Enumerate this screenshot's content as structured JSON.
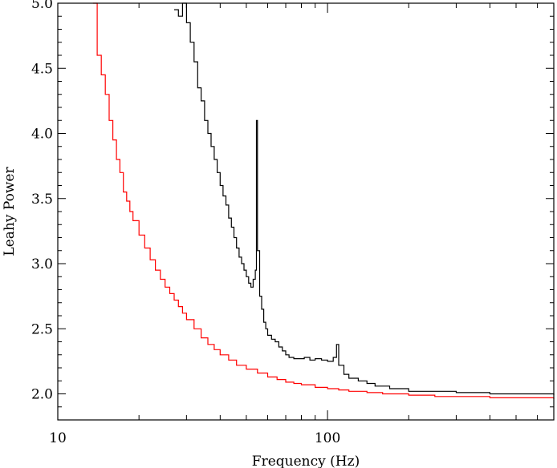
{
  "chart_data": {
    "type": "line",
    "xlabel": "Frequency (Hz)",
    "ylabel": "Leahy Power",
    "x_scale": "log",
    "xlim": [
      10,
      690
    ],
    "ylim": [
      1.8,
      5.0
    ],
    "x_ticks": [
      10,
      100
    ],
    "x_tick_labels": [
      "10",
      "100"
    ],
    "y_ticks": [
      2.0,
      2.5,
      3.0,
      3.5,
      4.0,
      4.5,
      5.0
    ],
    "y_tick_labels": [
      "2.0",
      "2.5",
      "3.0",
      "3.5",
      "4.0",
      "4.5",
      "5.0"
    ],
    "grid": false,
    "series": [
      {
        "color": "#000000",
        "x": [
          27,
          28,
          29,
          30,
          31,
          32,
          33,
          34,
          35,
          36,
          37,
          38,
          39,
          40,
          41,
          42,
          43,
          44,
          45,
          46,
          47,
          48,
          49,
          50,
          51,
          52,
          53,
          54,
          54.5,
          55,
          56,
          57,
          58,
          59,
          60,
          62,
          64,
          66,
          68,
          70,
          72,
          75,
          78,
          82,
          86,
          90,
          95,
          100,
          105,
          108,
          110,
          115,
          120,
          130,
          140,
          150,
          170,
          200,
          250,
          300,
          400,
          500,
          690
        ],
        "y": [
          4.95,
          4.9,
          5.0,
          4.85,
          4.7,
          4.55,
          4.35,
          4.25,
          4.1,
          4.0,
          3.9,
          3.8,
          3.7,
          3.6,
          3.52,
          3.45,
          3.35,
          3.28,
          3.2,
          3.12,
          3.05,
          3.0,
          2.95,
          2.9,
          2.85,
          2.82,
          2.88,
          2.95,
          4.1,
          3.1,
          2.75,
          2.65,
          2.55,
          2.5,
          2.45,
          2.42,
          2.4,
          2.36,
          2.33,
          2.3,
          2.28,
          2.27,
          2.27,
          2.28,
          2.26,
          2.27,
          2.26,
          2.25,
          2.28,
          2.38,
          2.22,
          2.15,
          2.12,
          2.1,
          2.08,
          2.06,
          2.04,
          2.02,
          2.02,
          2.01,
          2.0,
          2.0,
          1.99
        ]
      },
      {
        "color": "#ff0000",
        "x": [
          13.5,
          14,
          14.5,
          15,
          15.5,
          16,
          16.5,
          17,
          17.5,
          18,
          18.5,
          19,
          20,
          21,
          22,
          23,
          24,
          25,
          26,
          27,
          28,
          29,
          30,
          32,
          34,
          36,
          38,
          40,
          43,
          46,
          50,
          55,
          60,
          65,
          70,
          75,
          80,
          90,
          100,
          110,
          120,
          140,
          160,
          200,
          250,
          300,
          400,
          500,
          690
        ],
        "y": [
          5.0,
          4.6,
          4.45,
          4.3,
          4.1,
          3.95,
          3.8,
          3.7,
          3.55,
          3.48,
          3.4,
          3.33,
          3.22,
          3.12,
          3.03,
          2.95,
          2.88,
          2.82,
          2.77,
          2.72,
          2.67,
          2.62,
          2.57,
          2.5,
          2.43,
          2.38,
          2.34,
          2.3,
          2.26,
          2.22,
          2.19,
          2.16,
          2.13,
          2.11,
          2.09,
          2.08,
          2.07,
          2.05,
          2.04,
          2.03,
          2.02,
          2.01,
          2.0,
          1.99,
          1.98,
          1.98,
          1.97,
          1.97,
          1.96
        ]
      }
    ]
  }
}
